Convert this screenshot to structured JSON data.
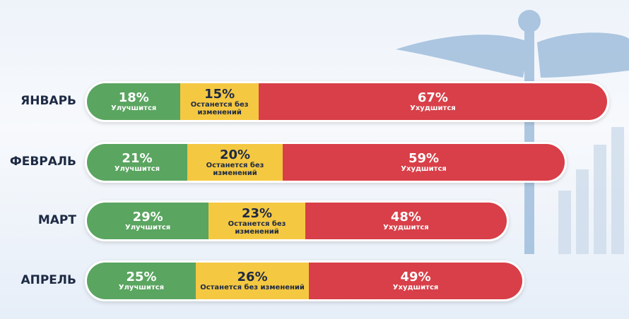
{
  "chart_data": {
    "type": "bar",
    "orientation": "horizontal",
    "stacked": true,
    "categories": [
      "ЯНВАРЬ",
      "ФЕВРАЛЬ",
      "МАРТ",
      "АПРЕЛЬ"
    ],
    "series": [
      {
        "name": "Улучшится",
        "color": "#5aa560",
        "values": [
          18,
          21,
          29,
          25
        ],
        "value_labels": [
          "18%",
          "21%",
          "29%",
          "25%"
        ]
      },
      {
        "name": "Останется без изменений",
        "color": "#f5c842",
        "values": [
          15,
          20,
          23,
          26
        ],
        "value_labels": [
          "15%",
          "20%",
          "23%",
          "26%"
        ]
      },
      {
        "name": "Ухудшится",
        "color": "#d83f48",
        "values": [
          67,
          59,
          48,
          49
        ],
        "value_labels": [
          "67%",
          "59%",
          "48%",
          "49%"
        ]
      }
    ]
  }
}
